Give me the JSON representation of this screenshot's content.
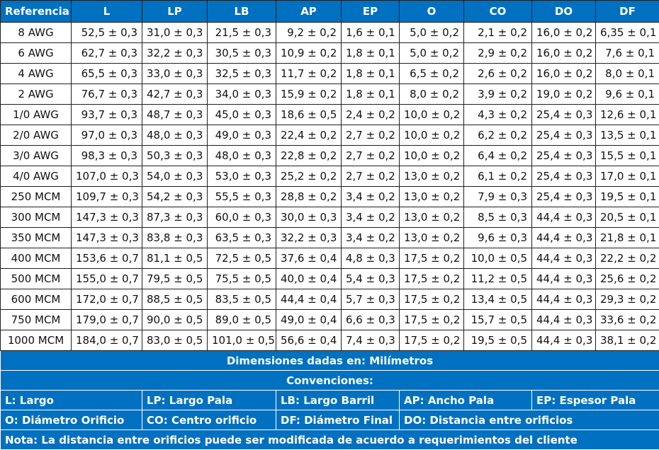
{
  "columns": [
    "Referencia",
    "L",
    "LP",
    "LB",
    "AP",
    "EP",
    "O",
    "CO",
    "DO",
    "DF"
  ],
  "rows": [
    [
      "8 AWG",
      "52,5 ± 0,3",
      "31,0 ± 0,3",
      "21,5 ± 0,3",
      "9,2 ± 0,2",
      "1,6 ± 0,1",
      "5,0 ± 0,2",
      "2,1 ± 0,2",
      "16,0 ± 0,2",
      "6,35 ± 0,1"
    ],
    [
      "6 AWG",
      "62,7 ± 0,3",
      "32,2 ± 0,3",
      "30,5 ± 0,3",
      "10,9 ± 0,2",
      "1,8 ± 0,1",
      "5,0 ± 0,2",
      "2,9 ± 0,2",
      "16,0 ± 0,2",
      "7,6 ± 0,1"
    ],
    [
      "4 AWG",
      "65,5 ± 0,3",
      "33,0 ± 0,3",
      "32,5 ± 0,3",
      "11,7 ± 0,2",
      "1,8 ± 0,1",
      "6,5 ± 0,2",
      "2,6 ± 0,2",
      "16,0 ± 0,2",
      "8,0 ± 0,1"
    ],
    [
      "2 AWG",
      "76,7 ± 0,3",
      "42,7 ± 0,3",
      "34,0 ± 0,3",
      "15,9 ± 0,2",
      "1,8 ± 0,1",
      "8,0 ± 0,2",
      "3,9 ± 0,2",
      "19,0 ± 0,2",
      "9,6 ± 0,1"
    ],
    [
      "1/0 AWG",
      "93,7 ± 0,3",
      "48,7 ± 0,3",
      "45,0 ± 0,3",
      "18,6 ± 0,5",
      "2,4 ± 0,2",
      "10,0 ± 0,2",
      "4,3 ± 0,2",
      "25,4 ± 0,3",
      "12,6 ± 0,1"
    ],
    [
      "2/0 AWG",
      "97,0 ± 0,3",
      "48,0 ± 0,3",
      "49,0 ± 0,3",
      "22,4 ± 0,2",
      "2,7 ± 0,2",
      "10,0 ± 0,2",
      "6,2 ± 0,2",
      "25,4 ± 0,3",
      "13,5 ± 0,1"
    ],
    [
      "3/0 AWG",
      "98,3 ± 0,3",
      "50,3 ± 0,3",
      "48,0 ± 0,3",
      "22,8 ± 0,2",
      "2,7 ± 0,2",
      "10,0 ± 0,2",
      "6,4 ± 0,2",
      "25,4 ± 0,3",
      "15,5 ± 0,1"
    ],
    [
      "4/0 AWG",
      "107,0 ± 0,3",
      "54,0 ± 0,3",
      "53,0 ± 0,3",
      "25,2 ± 0,2",
      "2,7 ± 0,2",
      "13,0 ± 0,2",
      "6,1 ± 0,2",
      "25,4 ± 0,3",
      "17,0 ± 0,1"
    ],
    [
      "250 MCM",
      "109,7 ± 0,3",
      "54,2 ± 0,3",
      "55,5 ± 0,3",
      "28,8 ± 0,2",
      "3,4 ± 0,2",
      "13,0 ± 0,2",
      "7,9 ± 0,3",
      "25,4 ± 0,3",
      "19,5 ± 0,1"
    ],
    [
      "300 MCM",
      "147,3 ± 0,3",
      "87,3 ± 0,3",
      "60,0 ± 0,3",
      "30,0 ± 0,3",
      "3,4 ± 0,2",
      "13,0 ± 0,2",
      "8,5 ± 0,3",
      "44,4 ± 0,3",
      "20,5 ± 0,1"
    ],
    [
      "350 MCM",
      "147,3 ± 0,3",
      "83,8 ± 0,3",
      "63,5 ± 0,3",
      "32,2 ± 0,3",
      "3,4 ± 0,2",
      "13,0 ± 0,2",
      "9,6 ± 0,3",
      "44,4 ± 0,3",
      "21,8 ± 0,1"
    ],
    [
      "400 MCM",
      "153,6 ± 0,7",
      "81,1 ± 0,5",
      "72,5 ± 0,5",
      "37,6 ± 0,4",
      "4,8 ± 0,3",
      "17,5 ± 0,2",
      "10,0 ± 0,5",
      "44,4 ± 0,3",
      "22,2 ± 0,2"
    ],
    [
      "500 MCM",
      "155,0 ± 0,7",
      "79,5 ± 0,5",
      "75,5 ± 0,5",
      "40,0 ± 0,4",
      "5,4 ± 0,3",
      "17,5 ± 0,2",
      "11,2 ± 0,5",
      "44,4 ± 0,3",
      "25,6 ± 0,2"
    ],
    [
      "600 MCM",
      "172,0 ± 0,7",
      "88,5 ± 0,5",
      "83,5 ± 0,5",
      "44,4 ± 0,4",
      "5,7 ± 0,3",
      "17,5 ± 0,2",
      "13,4 ± 0,5",
      "44,4 ± 0,3",
      "29,3 ± 0,2"
    ],
    [
      "750 MCM",
      "179,0 ± 0,7",
      "90,0 ± 0,5",
      "89,0 ± 0,5",
      "49,0 ± 0,4",
      "6,6 ± 0,3",
      "17,5 ± 0,2",
      "15,7 ± 0,5",
      "44,4 ± 0,3",
      "33,6 ± 0,2"
    ],
    [
      "1000 MCM",
      "184,0 ± 0,7",
      "83,0 ± 0,5",
      "101,0 ± 0,5",
      "56,6 ± 0,4",
      "7,4 ± 0,3",
      "17,5 ± 0,2",
      "19,5 ± 0,5",
      "44,4 ± 0,3",
      "38,1 ± 0,2"
    ]
  ],
  "footer": {
    "units": "Dimensiones dadas en: Milímetros",
    "conventions_title": "Convenciones:",
    "conventions_row1": [
      "L: Largo",
      "LP: Largo Pala",
      "LB: Largo Barril",
      "AP: Ancho Pala",
      "EP: Espesor Pala"
    ],
    "conventions_row2": [
      "O: Diámetro Orificio",
      "CO: Centro orificio",
      "DF: Diámetro Final",
      "DO: Distancia entre orificios"
    ],
    "note": "Nota: La distancia entre orificios puede ser modificada de acuerdo a requerimientos del cliente"
  },
  "colors": {
    "header_bg": "#0070c0",
    "header_text": "#ffffff",
    "border": "#1f1f1f"
  }
}
